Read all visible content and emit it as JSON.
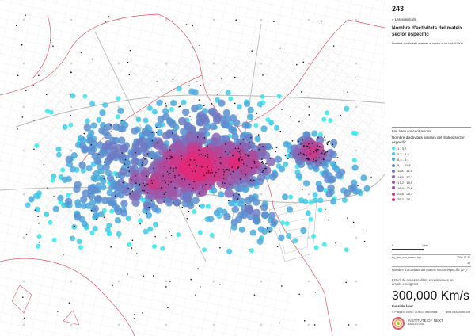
{
  "sheet": {
    "page_number": "243",
    "section": "4 Les similituds",
    "title": "Nombre d'activitats del mateix sector específic",
    "subtitle": "Nombre d'activitats similars al sector a un radi d'1 Km"
  },
  "legend": {
    "heading": "Les altes concentracions",
    "title": "Nombre d'activitats similars del mateix sector específic",
    "classes": [
      {
        "label": "1 - 3,7",
        "color": "#33e8ec"
      },
      {
        "label": "3,7 - 6,4",
        "color": "#3fc9e6"
      },
      {
        "label": "6,4 - 9,1",
        "color": "#4aa9dc"
      },
      {
        "label": "9,1 - 11,8",
        "color": "#5c8fd0"
      },
      {
        "label": "11,8 - 14,5",
        "color": "#6f7bc4"
      },
      {
        "label": "14,5 - 17,2",
        "color": "#8668b6"
      },
      {
        "label": "17,2 - 19,9",
        "color": "#9d57a8"
      },
      {
        "label": "19,9 - 22,6",
        "color": "#b44799"
      },
      {
        "label": "22,6 - 25,3",
        "color": "#cc3889"
      },
      {
        "label": "25,3 - 28",
        "color": "#e02979"
      }
    ]
  },
  "scale": {
    "start": "0",
    "end": "1 km"
  },
  "footer": {
    "meta_left": "hq_nnn_nnn_nnnnnl.agr",
    "meta_right": "2000.12.31",
    "meta_num": "38",
    "map_caption": "Nombre d'activitats del mateix sector específic (2+)",
    "study": "Estudi de noves realitats econòmiques en àmbits emergents",
    "brand": "300,000 Km/s",
    "brand_sub": "Invisible land",
    "credits": "© Philips B.V. inc / UOB/C5 Barcelona",
    "credits_right": "www.300000kms.net",
    "institute": "INSTITUTE OF NEXT",
    "institute_sub": "BARCELONA"
  },
  "map": {
    "background": "#ffffff",
    "street_color": "#c9c9c9",
    "boundary_color": "#e0586b",
    "dot_color": "#111111"
  }
}
